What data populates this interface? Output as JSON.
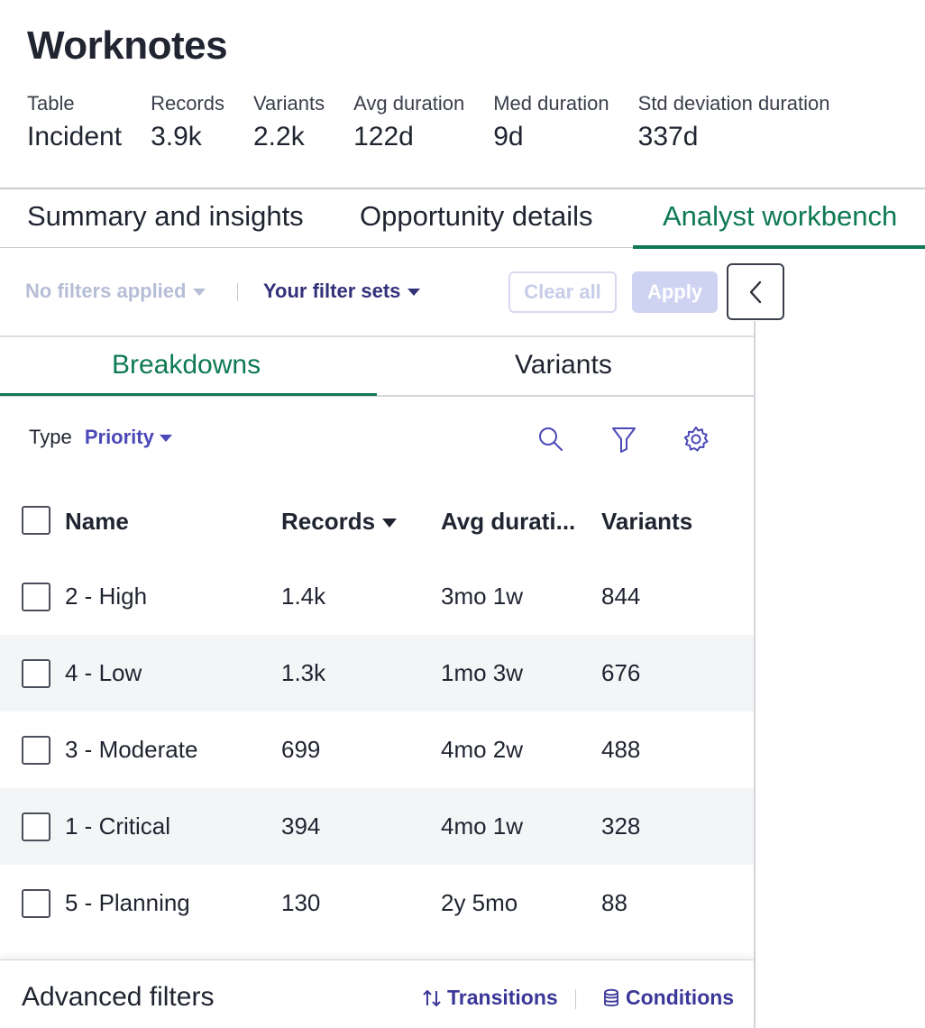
{
  "header": {
    "title": "Worknotes",
    "stats": [
      {
        "label": "Table",
        "value": "Incident"
      },
      {
        "label": "Records",
        "value": "3.9k"
      },
      {
        "label": "Variants",
        "value": "2.2k"
      },
      {
        "label": "Avg duration",
        "value": "122d"
      },
      {
        "label": "Med duration",
        "value": "9d"
      },
      {
        "label": "Std deviation duration",
        "value": "337d"
      }
    ]
  },
  "tabs": [
    {
      "label": "Summary and insights",
      "active": false
    },
    {
      "label": "Opportunity details",
      "active": false
    },
    {
      "label": "Analyst workbench",
      "active": true
    }
  ],
  "filterbar": {
    "no_filters": "No filters applied",
    "filter_sets": "Your filter sets",
    "clear_all": "Clear all",
    "apply": "Apply"
  },
  "subtabs": [
    {
      "label": "Breakdowns",
      "active": true
    },
    {
      "label": "Variants",
      "active": false
    }
  ],
  "breakdown": {
    "type_label": "Type",
    "type_value": "Priority",
    "tools": [
      "search-icon",
      "filter-icon",
      "gear-icon"
    ]
  },
  "table": {
    "columns": [
      "Name",
      "Records",
      "Avg durati...",
      "Variants"
    ],
    "sort_column": "Records",
    "rows": [
      {
        "name": "2 - High",
        "records": "1.4k",
        "avg_duration": "3mo 1w",
        "variants": "844"
      },
      {
        "name": "4 - Low",
        "records": "1.3k",
        "avg_duration": "1mo 3w",
        "variants": "676"
      },
      {
        "name": "3 - Moderate",
        "records": "699",
        "avg_duration": "4mo 2w",
        "variants": "488"
      },
      {
        "name": "1 - Critical",
        "records": "394",
        "avg_duration": "4mo 1w",
        "variants": "328"
      },
      {
        "name": "5 - Planning",
        "records": "130",
        "avg_duration": "2y 5mo",
        "variants": "88"
      }
    ]
  },
  "advanced": {
    "title": "Advanced filters",
    "transitions": "Transitions",
    "conditions": "Conditions"
  },
  "colors": {
    "accent_green": "#0e7a52",
    "link_purple": "#33317a",
    "apply_disabled": "#cfd3f2"
  }
}
